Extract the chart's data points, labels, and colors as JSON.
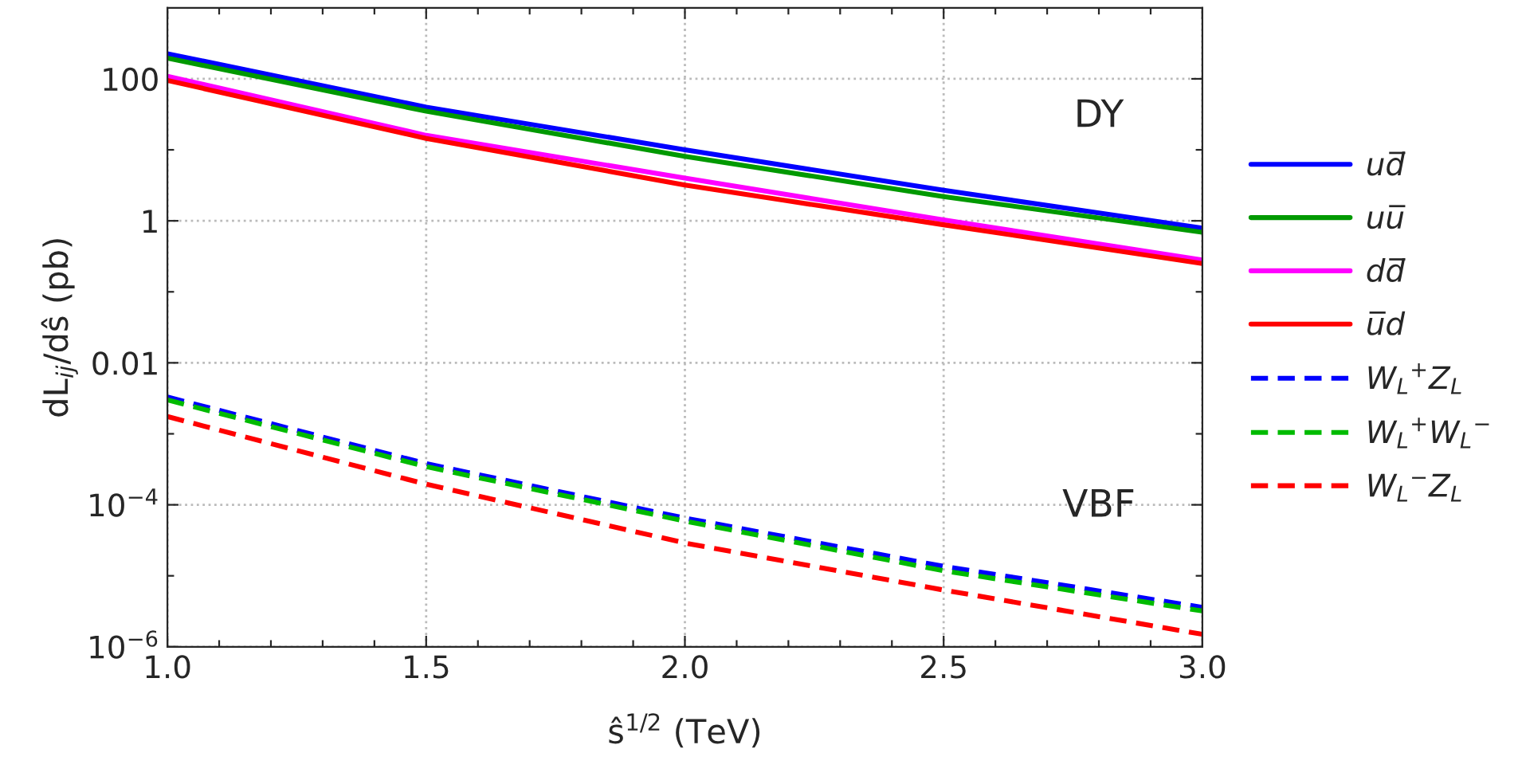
{
  "chart_data": {
    "type": "line",
    "xlabel": "ŝ$^{1/2}$ (TeV)",
    "ylabel": "dL$_{ij}$/dŝ (pb)",
    "annotations": [
      "DY",
      "VBF"
    ],
    "x": [
      1.0,
      1.5,
      2.0,
      2.5,
      3.0
    ],
    "series": [
      {
        "name": "ud̅",
        "color": "#0000ff",
        "line_style": "solid",
        "values": [
          226,
          40,
          10,
          2.7,
          0.79
        ]
      },
      {
        "name": "uu̅",
        "color": "#009900",
        "line_style": "solid",
        "values": [
          196,
          35,
          8.1,
          2.2,
          0.69
        ]
      },
      {
        "name": "dd̅",
        "color": "#ff00ff",
        "line_style": "solid",
        "values": [
          109,
          16,
          4.0,
          1.03,
          0.28
        ]
      },
      {
        "name": "u̅d",
        "color": "#ff0000",
        "line_style": "solid",
        "values": [
          95,
          14.5,
          3.2,
          0.88,
          0.25
        ]
      },
      {
        "name": "W$_{L}$$^{+}$Z$_{L}$",
        "color": "#0000ff",
        "line_style": "dashed",
        "values": [
          0.0033,
          0.00038,
          6.5e-05,
          1.36e-05,
          3.6e-06
        ]
      },
      {
        "name": "W$_{L}$$^{+}$W$_{L}$$^{−}$",
        "color": "#00bb00",
        "line_style": "dashed",
        "values": [
          0.003,
          0.000345,
          5.9e-05,
          1.18e-05,
          3.2e-06
        ]
      },
      {
        "name": "W$_{L}$$^{−}$Z$_{L}$",
        "color": "#ff0000",
        "line_style": "dashed",
        "values": [
          0.00175,
          0.000195,
          2.9e-05,
          6.3e-06,
          1.5e-06
        ]
      }
    ],
    "log": "y",
    "xlim": [
      1.0,
      3.0
    ],
    "xticks": [
      {
        "value": 1.0,
        "label": "1.0"
      },
      {
        "value": 1.1,
        "label": null
      },
      {
        "value": 1.2,
        "label": null
      },
      {
        "value": 1.3,
        "label": null
      },
      {
        "value": 1.4,
        "label": null
      },
      {
        "value": 1.5,
        "label": "1.5"
      },
      {
        "value": 1.6,
        "label": null
      },
      {
        "value": 1.7,
        "label": null
      },
      {
        "value": 1.8,
        "label": null
      },
      {
        "value": 1.9,
        "label": null
      },
      {
        "value": 2.0,
        "label": "2.0"
      },
      {
        "value": 2.1,
        "label": null
      },
      {
        "value": 2.2,
        "label": null
      },
      {
        "value": 2.3,
        "label": null
      },
      {
        "value": 2.4,
        "label": null
      },
      {
        "value": 2.5,
        "label": "2.5"
      },
      {
        "value": 2.6,
        "label": null
      },
      {
        "value": 2.7,
        "label": null
      },
      {
        "value": 2.8,
        "label": null
      },
      {
        "value": 2.9,
        "label": null
      },
      {
        "value": 3.0,
        "label": "3.0"
      }
    ],
    "ylim": [
      1e-06,
      1000
    ],
    "yticks": [
      {
        "value": 1e-06,
        "label": "10$^{−6}$"
      },
      {
        "value": 1e-05,
        "label": null
      },
      {
        "value": 0.0001,
        "label": "10$^{−4}$"
      },
      {
        "value": 0.001,
        "label": null
      },
      {
        "value": 0.01,
        "label": "0.01"
      },
      {
        "value": 0.1,
        "label": null
      },
      {
        "value": 1,
        "label": "1"
      },
      {
        "value": 10,
        "label": null
      },
      {
        "value": 100,
        "label": "100"
      }
    ],
    "grid": true,
    "legend": "right"
  }
}
